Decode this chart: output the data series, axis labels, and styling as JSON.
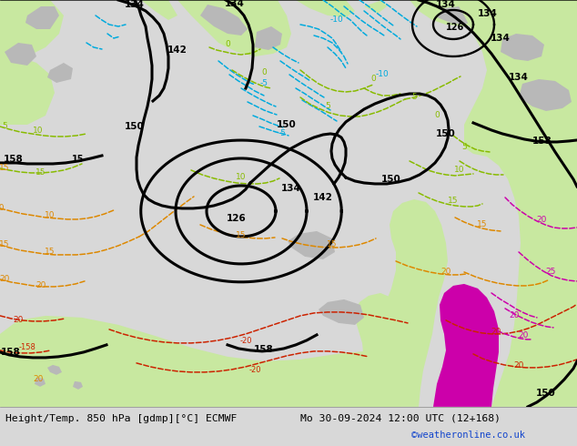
{
  "title_left": "Height/Temp. 850 hPa [gdmp][°C] ECMWF",
  "title_right": "Mo 30-09-2024 12:00 UTC (12+168)",
  "credit": "©weatheronline.co.uk",
  "sea_color": "#e0e0e0",
  "land_color": "#c8e8a0",
  "gray_land": "#b8b8b8",
  "magenta_land": "#f0b0d0",
  "bottom_bar_color": "#d8d8d8",
  "cyan_color": "#00aadd",
  "green_color": "#88bb00",
  "orange_color": "#dd8800",
  "red_color": "#cc2200",
  "magenta_color": "#cc00aa",
  "black_contour_lw": 2.2,
  "color_contour_lw": 1.1,
  "fig_width": 6.34,
  "fig_height": 4.9,
  "dpi": 100
}
